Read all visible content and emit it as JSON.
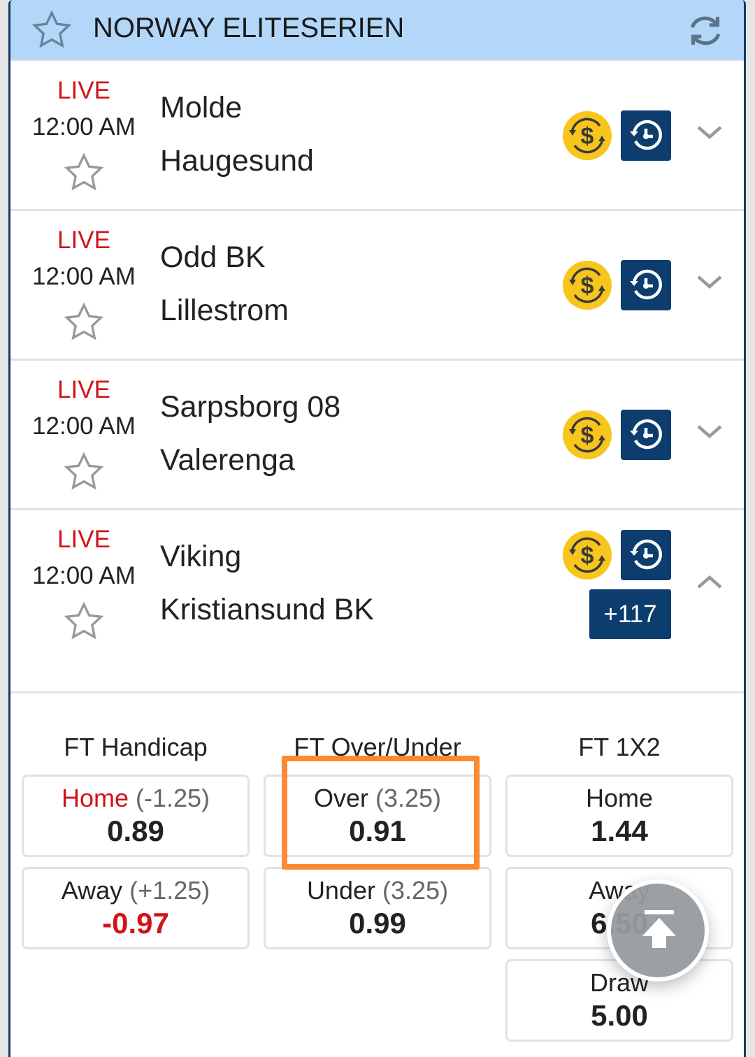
{
  "header": {
    "title": "NORWAY ELITESERIEN",
    "favorite_icon": "star-outline-icon",
    "refresh_icon": "refresh-icon",
    "bg_color": "#b3d7f8"
  },
  "matches": [
    {
      "status": "LIVE",
      "time": "12:00 AM",
      "home": "Molde",
      "away": "Haugesund",
      "expanded": false
    },
    {
      "status": "LIVE",
      "time": "12:00 AM",
      "home": "Odd BK",
      "away": "Lillestrom",
      "expanded": false
    },
    {
      "status": "LIVE",
      "time": "12:00 AM",
      "home": "Sarpsborg 08",
      "away": "Valerenga",
      "expanded": false
    },
    {
      "status": "LIVE",
      "time": "12:00 AM",
      "home": "Viking",
      "away": "Kristiansund BK",
      "expanded": true,
      "more_markets": "+117"
    }
  ],
  "markets": {
    "handicap": {
      "title": "FT Handicap",
      "home": {
        "label": "Home",
        "line": "(-1.25)",
        "odds": "0.89"
      },
      "away": {
        "label": "Away",
        "line": "(+1.25)",
        "odds": "-0.97"
      }
    },
    "over_under": {
      "title": "FT Over/Under",
      "over": {
        "label": "Over",
        "line": "(3.25)",
        "odds": "0.91"
      },
      "under": {
        "label": "Under",
        "line": "(3.25)",
        "odds": "0.99"
      }
    },
    "x12": {
      "title": "FT 1X2",
      "home": {
        "label": "Home",
        "odds": "1.44"
      },
      "away": {
        "label": "Away",
        "odds": "6.50"
      },
      "draw": {
        "label": "Draw",
        "odds": "5.00"
      }
    }
  },
  "colors": {
    "live": "#d0141a",
    "navy": "#0c3d6e",
    "coin": "#f7c51c",
    "highlight": "#fb8a32"
  }
}
